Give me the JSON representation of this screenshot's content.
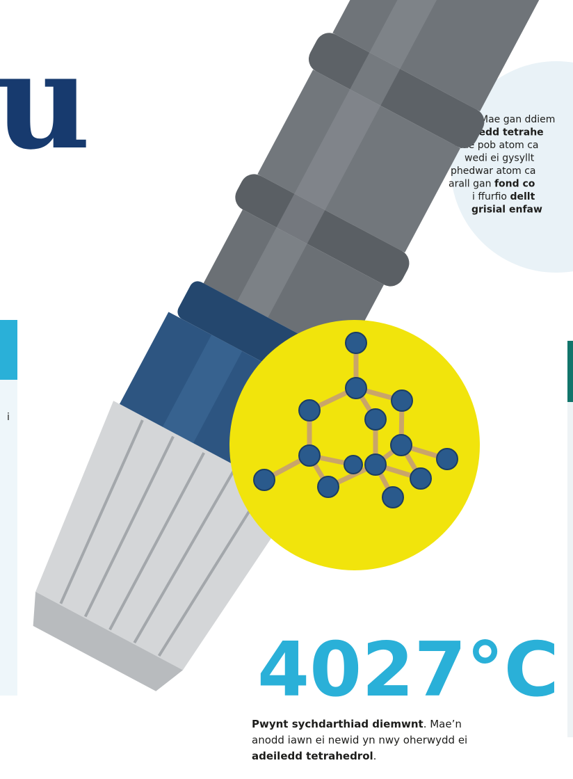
{
  "heading": {
    "text": "u"
  },
  "left_panel": {
    "text": "i"
  },
  "bubble": {
    "lines": [
      [
        {
          "text": "Mae gan ddiem",
          "bold": false
        }
      ],
      [
        {
          "text": "adeiledd tetrahe",
          "bold": true
        }
      ],
      [
        {
          "text": "Mae pob atom ca",
          "bold": false
        }
      ],
      [
        {
          "text": "wedi ei gysyllt",
          "bold": false
        }
      ],
      [
        {
          "text": "phedwar atom ca",
          "bold": false
        }
      ],
      [
        {
          "text": "arall gan ",
          "bold": false
        },
        {
          "text": "fond co",
          "bold": true
        }
      ],
      [
        {
          "text": "i ffurfio ",
          "bold": false
        },
        {
          "text": "dellt",
          "bold": true
        }
      ],
      [
        {
          "text": "grisial enfaw",
          "bold": true
        }
      ]
    ]
  },
  "fact": {
    "value": "4027°C",
    "caption_lines": [
      [
        {
          "text": "Pwynt sychdarthiad diemwnt",
          "bold": true
        },
        {
          "text": ". Mae’n",
          "bold": false
        }
      ],
      [
        {
          "text": "anodd iawn ei newid yn nwy oherwydd ei",
          "bold": false
        }
      ],
      [
        {
          "text": "adeiledd tetrahedrol",
          "bold": true
        },
        {
          "text": ".",
          "bold": false
        }
      ]
    ]
  }
}
